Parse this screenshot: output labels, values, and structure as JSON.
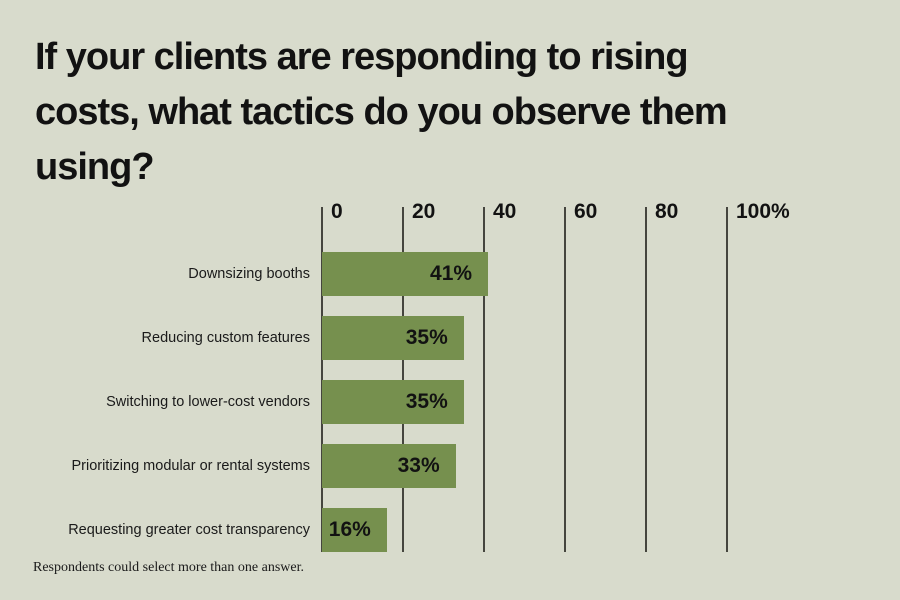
{
  "title": "If your clients are responding to rising costs, what tactics do you observe them using?",
  "title_lines": [
    "If your clients are responding to rising",
    "costs, what tactics do you observe them",
    "using?"
  ],
  "footnote": "Respondents could select more than one answer.",
  "colors": {
    "background": "#D8DBCC",
    "bar": "#76904E",
    "gridline": "#45453E",
    "text": "#121212"
  },
  "chart_data": {
    "type": "bar",
    "orientation": "horizontal",
    "title": "If your clients are responding to rising costs, what tactics do you observe them using?",
    "categories": [
      "Downsizing booths",
      "Reducing custom features",
      "Switching to lower-cost vendors",
      "Prioritizing modular or rental systems",
      "Requesting greater cost transparency"
    ],
    "values": [
      41,
      35,
      35,
      33,
      16
    ],
    "value_labels": [
      "41%",
      "35%",
      "35%",
      "33%",
      "16%"
    ],
    "axis": {
      "position": "top",
      "range": [
        0,
        100
      ],
      "ticks": [
        0,
        20,
        40,
        60,
        80,
        100
      ],
      "tick_labels": [
        "0",
        "20",
        "40",
        "60",
        "80",
        "100%"
      ]
    },
    "grid": true,
    "legend": false,
    "xlabel": "",
    "ylabel": ""
  }
}
